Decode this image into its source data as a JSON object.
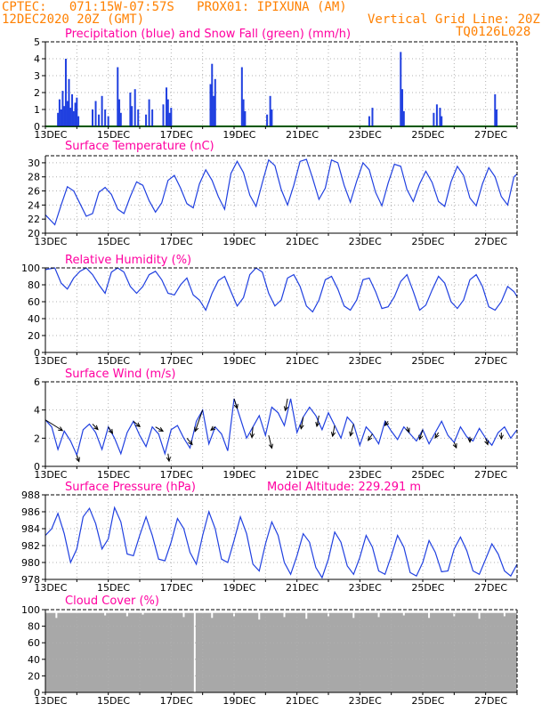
{
  "header": {
    "line1": "CPTEC:   071:15W-07:57S   PROX01: IPIXUNA (AM)",
    "line2_left": "12DEC2020 20Z (GMT)",
    "line2_right": "Vertical Grid Line: 20Z",
    "line3_right": "TQ0126L028"
  },
  "x_axis": {
    "labels": [
      "13DEC",
      "15DEC",
      "17DEC",
      "19DEC",
      "21DEC",
      "23DEC",
      "25DEC",
      "27DEC"
    ],
    "label_day_offsets": [
      0.167,
      2.167,
      4.167,
      6.167,
      8.167,
      10.167,
      12.167,
      14.167
    ],
    "day_span": 15,
    "vertical_grid_time": "20Z"
  },
  "colors": {
    "series": "#2040e0",
    "snow": "#00b000",
    "title": "#ff00a0",
    "header": "#ff8000",
    "cloud": "#a8a8a8",
    "grid": "#b0b0b0"
  },
  "chart_data": [
    {
      "id": "precip",
      "type": "bar",
      "title": "Precipitation (blue) and Snow Fall (green) (mm/h)",
      "ylim": [
        0,
        5
      ],
      "yticks": [
        0,
        1,
        2,
        3,
        4,
        5
      ],
      "snow_value": 0.0,
      "values": [
        {
          "t": 0.4,
          "v": 0.8
        },
        {
          "t": 0.45,
          "v": 1.6
        },
        {
          "t": 0.5,
          "v": 1.0
        },
        {
          "t": 0.55,
          "v": 2.1
        },
        {
          "t": 0.6,
          "v": 1.2
        },
        {
          "t": 0.65,
          "v": 4.0
        },
        {
          "t": 0.7,
          "v": 1.5
        },
        {
          "t": 0.75,
          "v": 2.8
        },
        {
          "t": 0.8,
          "v": 1.1
        },
        {
          "t": 0.85,
          "v": 1.9
        },
        {
          "t": 0.9,
          "v": 0.9
        },
        {
          "t": 0.95,
          "v": 1.4
        },
        {
          "t": 1.0,
          "v": 1.7
        },
        {
          "t": 1.05,
          "v": 0.6
        },
        {
          "t": 1.5,
          "v": 1.0
        },
        {
          "t": 1.6,
          "v": 1.5
        },
        {
          "t": 1.7,
          "v": 0.7
        },
        {
          "t": 1.8,
          "v": 1.8
        },
        {
          "t": 1.9,
          "v": 1.0
        },
        {
          "t": 2.0,
          "v": 0.6
        },
        {
          "t": 2.3,
          "v": 3.5
        },
        {
          "t": 2.35,
          "v": 1.6
        },
        {
          "t": 2.4,
          "v": 0.8
        },
        {
          "t": 2.7,
          "v": 2.0
        },
        {
          "t": 2.75,
          "v": 1.2
        },
        {
          "t": 2.85,
          "v": 2.2
        },
        {
          "t": 2.95,
          "v": 1.0
        },
        {
          "t": 3.2,
          "v": 0.7
        },
        {
          "t": 3.3,
          "v": 1.6
        },
        {
          "t": 3.4,
          "v": 1.0
        },
        {
          "t": 3.75,
          "v": 1.3
        },
        {
          "t": 3.85,
          "v": 2.3
        },
        {
          "t": 3.9,
          "v": 1.6
        },
        {
          "t": 3.95,
          "v": 0.8
        },
        {
          "t": 4.0,
          "v": 1.1
        },
        {
          "t": 5.25,
          "v": 2.5
        },
        {
          "t": 5.3,
          "v": 3.7
        },
        {
          "t": 5.35,
          "v": 1.8
        },
        {
          "t": 5.4,
          "v": 2.8
        },
        {
          "t": 6.25,
          "v": 3.5
        },
        {
          "t": 6.3,
          "v": 1.6
        },
        {
          "t": 6.35,
          "v": 0.9
        },
        {
          "t": 7.05,
          "v": 0.7
        },
        {
          "t": 7.15,
          "v": 1.8
        },
        {
          "t": 7.2,
          "v": 1.0
        },
        {
          "t": 10.3,
          "v": 0.6
        },
        {
          "t": 10.4,
          "v": 1.1
        },
        {
          "t": 11.3,
          "v": 4.4
        },
        {
          "t": 11.35,
          "v": 2.2
        },
        {
          "t": 11.4,
          "v": 0.9
        },
        {
          "t": 12.35,
          "v": 0.8
        },
        {
          "t": 12.45,
          "v": 1.3
        },
        {
          "t": 12.55,
          "v": 1.1
        },
        {
          "t": 12.6,
          "v": 0.6
        },
        {
          "t": 14.3,
          "v": 1.9
        },
        {
          "t": 14.35,
          "v": 1.0
        }
      ]
    },
    {
      "id": "temperature",
      "type": "line",
      "title": "Surface Temperature (nC)",
      "ylim": [
        20,
        31
      ],
      "yticks": [
        20,
        22,
        24,
        26,
        28,
        30
      ],
      "x": [
        0.0,
        0.3,
        0.5,
        0.7,
        0.9,
        1.1,
        1.3,
        1.5,
        1.7,
        1.9,
        2.1,
        2.3,
        2.5,
        2.7,
        2.9,
        3.1,
        3.3,
        3.5,
        3.7,
        3.9,
        4.1,
        4.3,
        4.5,
        4.7,
        4.9,
        5.1,
        5.3,
        5.5,
        5.7,
        5.9,
        6.1,
        6.3,
        6.5,
        6.7,
        6.9,
        7.1,
        7.3,
        7.5,
        7.7,
        7.9,
        8.1,
        8.3,
        8.5,
        8.7,
        8.9,
        9.1,
        9.3,
        9.5,
        9.7,
        9.9,
        10.1,
        10.3,
        10.5,
        10.7,
        10.9,
        11.1,
        11.3,
        11.5,
        11.7,
        11.9,
        12.1,
        12.3,
        12.5,
        12.7,
        12.9,
        13.1,
        13.3,
        13.5,
        13.7,
        13.9,
        14.1,
        14.3,
        14.5,
        14.7,
        14.9,
        15.0
      ],
      "y": [
        22.6,
        21.2,
        24.0,
        26.6,
        26.0,
        24.2,
        22.4,
        22.8,
        25.8,
        26.5,
        25.5,
        23.4,
        22.8,
        25.2,
        27.3,
        26.8,
        24.6,
        23.0,
        24.3,
        27.5,
        28.2,
        26.4,
        24.2,
        23.6,
        27.0,
        29.0,
        27.5,
        25.2,
        23.4,
        28.5,
        30.2,
        28.6,
        25.4,
        23.8,
        27.2,
        30.4,
        29.6,
        26.2,
        24.0,
        26.8,
        30.2,
        30.5,
        27.8,
        24.8,
        26.4,
        30.4,
        30.0,
        26.8,
        24.4,
        27.4,
        30.0,
        29.0,
        25.8,
        23.9,
        27.1,
        29.8,
        29.5,
        26.2,
        24.5,
        27.0,
        28.8,
        27.2,
        24.5,
        23.8,
        27.3,
        29.5,
        28.2,
        25.0,
        23.9,
        27.0,
        29.3,
        28.0,
        25.2,
        24.0,
        28.0,
        28.4
      ]
    },
    {
      "id": "humidity",
      "type": "line",
      "title": "Relative Humidity (%)",
      "ylim": [
        0,
        100
      ],
      "yticks": [
        0,
        20,
        40,
        60,
        80,
        100
      ],
      "x": [
        0.0,
        0.3,
        0.5,
        0.7,
        0.9,
        1.1,
        1.3,
        1.5,
        1.7,
        1.9,
        2.1,
        2.3,
        2.5,
        2.7,
        2.9,
        3.1,
        3.3,
        3.5,
        3.7,
        3.9,
        4.1,
        4.3,
        4.5,
        4.7,
        4.9,
        5.1,
        5.3,
        5.5,
        5.7,
        5.9,
        6.1,
        6.3,
        6.5,
        6.7,
        6.9,
        7.1,
        7.3,
        7.5,
        7.7,
        7.9,
        8.1,
        8.3,
        8.5,
        8.7,
        8.9,
        9.1,
        9.3,
        9.5,
        9.7,
        9.9,
        10.1,
        10.3,
        10.5,
        10.7,
        10.9,
        11.1,
        11.3,
        11.5,
        11.7,
        11.9,
        12.1,
        12.3,
        12.5,
        12.7,
        12.9,
        13.1,
        13.3,
        13.5,
        13.7,
        13.9,
        14.1,
        14.3,
        14.5,
        14.7,
        14.9,
        15.0
      ],
      "y": [
        98,
        100,
        82,
        75,
        88,
        96,
        100,
        92,
        80,
        70,
        95,
        100,
        95,
        78,
        70,
        78,
        92,
        96,
        86,
        70,
        68,
        80,
        88,
        68,
        62,
        50,
        70,
        85,
        90,
        72,
        55,
        65,
        92,
        100,
        95,
        70,
        55,
        62,
        88,
        92,
        78,
        55,
        48,
        62,
        86,
        90,
        75,
        55,
        50,
        62,
        86,
        88,
        72,
        52,
        54,
        66,
        84,
        92,
        72,
        50,
        56,
        74,
        90,
        82,
        60,
        52,
        62,
        86,
        92,
        78,
        54,
        50,
        60,
        78,
        72,
        66
      ]
    },
    {
      "id": "wind",
      "type": "line",
      "title": "Surface Wind (m/s)",
      "ylim": [
        0,
        6
      ],
      "yticks": [
        0,
        2,
        4,
        6
      ],
      "x": [
        0.0,
        0.2,
        0.4,
        0.6,
        0.8,
        1.0,
        1.2,
        1.4,
        1.6,
        1.8,
        2.0,
        2.2,
        2.4,
        2.6,
        2.8,
        3.0,
        3.2,
        3.4,
        3.6,
        3.8,
        4.0,
        4.2,
        4.4,
        4.6,
        4.8,
        5.0,
        5.2,
        5.4,
        5.6,
        5.8,
        6.0,
        6.2,
        6.4,
        6.6,
        6.8,
        7.0,
        7.2,
        7.4,
        7.6,
        7.8,
        8.0,
        8.2,
        8.4,
        8.6,
        8.8,
        9.0,
        9.2,
        9.4,
        9.6,
        9.8,
        10.0,
        10.2,
        10.4,
        10.6,
        10.8,
        11.0,
        11.2,
        11.4,
        11.6,
        11.8,
        12.0,
        12.2,
        12.4,
        12.6,
        12.8,
        13.0,
        13.2,
        13.4,
        13.6,
        13.8,
        14.0,
        14.2,
        14.4,
        14.6,
        14.8,
        15.0
      ],
      "y": [
        3.3,
        2.8,
        1.2,
        2.5,
        1.8,
        0.8,
        2.6,
        3.0,
        2.4,
        1.2,
        2.8,
        2.0,
        0.9,
        2.4,
        3.2,
        2.2,
        1.4,
        2.8,
        2.3,
        0.9,
        2.6,
        2.9,
        2.0,
        1.3,
        3.2,
        4.0,
        1.6,
        2.8,
        2.3,
        1.1,
        4.8,
        3.4,
        2.0,
        2.8,
        3.6,
        2.2,
        4.2,
        3.8,
        2.9,
        4.8,
        2.4,
        3.5,
        4.2,
        3.6,
        2.6,
        3.8,
        2.9,
        2.0,
        3.5,
        3.0,
        1.5,
        2.8,
        2.3,
        1.6,
        3.2,
        2.5,
        1.9,
        2.8,
        2.3,
        1.8,
        2.6,
        1.6,
        2.4,
        3.2,
        2.2,
        1.7,
        2.8,
        2.1,
        1.8,
        2.7,
        2.0,
        1.5,
        2.4,
        2.8,
        2.0,
        2.6
      ],
      "arrows": [
        {
          "t": 0.0,
          "u": 1.6,
          "v": -1.0
        },
        {
          "t": 1.0,
          "u": 0.2,
          "v": -0.6
        },
        {
          "t": 1.5,
          "u": 0.5,
          "v": -0.5
        },
        {
          "t": 2.0,
          "u": 0.4,
          "v": -0.6
        },
        {
          "t": 2.8,
          "u": 0.6,
          "v": -0.5
        },
        {
          "t": 3.5,
          "u": 0.7,
          "v": -0.4
        },
        {
          "t": 3.9,
          "u": 0.1,
          "v": -0.7
        },
        {
          "t": 4.5,
          "u": 0.5,
          "v": -0.6
        },
        {
          "t": 5.0,
          "u": -0.7,
          "v": -2.0
        },
        {
          "t": 5.4,
          "u": -0.4,
          "v": -0.3
        },
        {
          "t": 6.0,
          "u": 0.3,
          "v": -0.9
        },
        {
          "t": 6.6,
          "u": -0.1,
          "v": -1.0
        },
        {
          "t": 7.1,
          "u": 0.3,
          "v": -1.2
        },
        {
          "t": 7.7,
          "u": -0.2,
          "v": -1.1
        },
        {
          "t": 8.2,
          "u": -0.2,
          "v": -1.1
        },
        {
          "t": 8.7,
          "u": -0.2,
          "v": -1.0
        },
        {
          "t": 9.2,
          "u": -0.2,
          "v": -1.0
        },
        {
          "t": 9.8,
          "u": -0.3,
          "v": -1.1
        },
        {
          "t": 10.4,
          "u": -0.4,
          "v": -0.6
        },
        {
          "t": 10.9,
          "u": -0.3,
          "v": -0.4
        },
        {
          "t": 11.5,
          "u": 0.2,
          "v": -0.5
        },
        {
          "t": 12.0,
          "u": -0.3,
          "v": -0.9
        },
        {
          "t": 12.5,
          "u": -0.3,
          "v": -0.5
        },
        {
          "t": 13.0,
          "u": 0.2,
          "v": -0.5
        },
        {
          "t": 13.5,
          "u": 0.0,
          "v": -0.5
        },
        {
          "t": 14.0,
          "u": 0.2,
          "v": -0.6
        },
        {
          "t": 14.5,
          "u": 0.0,
          "v": -0.6
        }
      ]
    },
    {
      "id": "pressure",
      "type": "line",
      "title": "Surface Pressure (hPa)",
      "subtitle": "Model Altitude: 229.291 m",
      "ylim": [
        978,
        988
      ],
      "yticks": [
        978,
        980,
        982,
        984,
        986,
        988
      ],
      "x": [
        0.0,
        0.2,
        0.4,
        0.6,
        0.8,
        1.0,
        1.2,
        1.4,
        1.6,
        1.8,
        2.0,
        2.2,
        2.4,
        2.6,
        2.8,
        3.0,
        3.2,
        3.4,
        3.6,
        3.8,
        4.0,
        4.2,
        4.4,
        4.6,
        4.8,
        5.0,
        5.2,
        5.4,
        5.6,
        5.8,
        6.0,
        6.2,
        6.4,
        6.6,
        6.8,
        7.0,
        7.2,
        7.4,
        7.6,
        7.8,
        8.0,
        8.2,
        8.4,
        8.6,
        8.8,
        9.0,
        9.2,
        9.4,
        9.6,
        9.8,
        10.0,
        10.2,
        10.4,
        10.6,
        10.8,
        11.0,
        11.2,
        11.4,
        11.6,
        11.8,
        12.0,
        12.2,
        12.4,
        12.6,
        12.8,
        13.0,
        13.2,
        13.4,
        13.6,
        13.8,
        14.0,
        14.2,
        14.4,
        14.6,
        14.8,
        15.0
      ],
      "y": [
        983.2,
        984.0,
        985.8,
        983.4,
        980.0,
        981.6,
        985.4,
        986.4,
        984.6,
        981.6,
        982.8,
        986.5,
        984.8,
        981.0,
        980.8,
        983.2,
        985.4,
        983.2,
        980.4,
        980.2,
        982.4,
        985.2,
        984.0,
        981.2,
        979.8,
        983.2,
        986.0,
        984.0,
        980.4,
        980.0,
        982.6,
        985.4,
        983.4,
        979.8,
        979.0,
        982.2,
        984.8,
        983.2,
        980.0,
        978.6,
        980.8,
        983.4,
        982.4,
        979.4,
        978.2,
        980.4,
        983.6,
        982.4,
        979.6,
        978.6,
        980.6,
        983.2,
        981.8,
        979.0,
        978.6,
        980.8,
        983.2,
        981.8,
        978.8,
        978.4,
        980.0,
        982.6,
        981.2,
        978.9,
        979.0,
        981.6,
        983.0,
        981.4,
        979.0,
        978.6,
        980.4,
        982.2,
        981.0,
        979.0,
        978.4,
        979.8
      ]
    },
    {
      "id": "cloud",
      "type": "area",
      "title": "Cloud Cover (%)",
      "ylim": [
        0,
        100
      ],
      "yticks": [
        0,
        20,
        40,
        60,
        80,
        100
      ],
      "base_value": 96,
      "gaps": [
        {
          "t": 0.35,
          "v": 90
        },
        {
          "t": 1.9,
          "v": 93
        },
        {
          "t": 2.6,
          "v": 92
        },
        {
          "t": 3.1,
          "v": 94
        },
        {
          "t": 4.4,
          "v": 91
        },
        {
          "t": 4.75,
          "v": 0
        },
        {
          "t": 5.3,
          "v": 90
        },
        {
          "t": 6.0,
          "v": 92
        },
        {
          "t": 6.8,
          "v": 88
        },
        {
          "t": 7.6,
          "v": 91
        },
        {
          "t": 8.3,
          "v": 89
        },
        {
          "t": 9.0,
          "v": 92
        },
        {
          "t": 9.8,
          "v": 90
        },
        {
          "t": 10.6,
          "v": 91
        },
        {
          "t": 11.4,
          "v": 93
        },
        {
          "t": 12.2,
          "v": 90
        },
        {
          "t": 13.0,
          "v": 92
        },
        {
          "t": 13.8,
          "v": 89
        },
        {
          "t": 14.6,
          "v": 92
        }
      ]
    }
  ]
}
